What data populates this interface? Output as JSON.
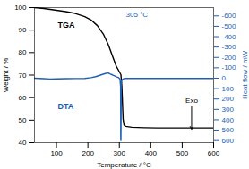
{
  "chart_data": {
    "type": "line",
    "xlabel": "Temperature / °C",
    "ylabel": "Weight / %",
    "y2label": "Heat flow / mW",
    "xlim": [
      30,
      600
    ],
    "xticks": [
      100,
      200,
      300,
      400,
      500,
      600
    ],
    "ylim": [
      40,
      100
    ],
    "yticks": [
      40,
      50,
      60,
      70,
      80,
      90,
      100
    ],
    "y2lim": [
      620,
      -680
    ],
    "y2ticks": [
      -600,
      -500,
      -400,
      -300,
      -200,
      -100,
      0,
      100,
      200,
      300,
      400,
      500,
      600
    ],
    "series": [
      {
        "name": "TGA",
        "color": "#000000",
        "x": [
          30,
          60,
          80,
          100,
          130,
          160,
          190,
          210,
          230,
          250,
          265,
          278,
          290,
          300,
          305,
          308,
          312,
          315,
          320,
          340,
          380,
          420,
          470,
          530,
          600
        ],
        "values": [
          100,
          99.6,
          99.2,
          98.8,
          98.2,
          97.4,
          96.0,
          94.5,
          92.0,
          88.0,
          83.5,
          78.5,
          74.0,
          71.5,
          70.2,
          65.0,
          50.5,
          47.8,
          47.2,
          46.8,
          46.6,
          46.5,
          46.5,
          46.5,
          46.5
        ]
      },
      {
        "name": "DTA",
        "color": "#1a5fb4",
        "axis": "y2",
        "x": [
          30,
          60,
          80,
          100,
          130,
          160,
          190,
          210,
          225,
          240,
          255,
          265,
          270,
          278,
          285,
          292,
          298,
          302,
          304,
          304.5,
          305.0,
          305.5,
          306,
          307,
          309,
          312,
          315,
          320,
          340,
          380,
          430,
          490,
          550,
          600
        ],
        "values": [
          0,
          5,
          8,
          6,
          4,
          3,
          2,
          -5,
          -15,
          -30,
          -45,
          -50,
          -42,
          -32,
          -22,
          -12,
          -5,
          10,
          80,
          580,
          600,
          400,
          60,
          25,
          15,
          8,
          4,
          2,
          2,
          2,
          2,
          2,
          2,
          2
        ]
      }
    ],
    "annotations": [
      {
        "text": "305 °C",
        "color": "#1a5fb4"
      },
      {
        "text": "Exo",
        "x": 530,
        "y": 57.5,
        "arrow": [
          530,
          56,
          530,
          46
        ],
        "color": "#000000"
      }
    ]
  }
}
